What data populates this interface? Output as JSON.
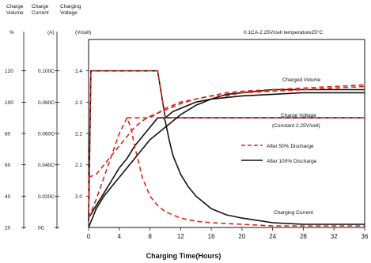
{
  "chart_data": {
    "type": "line",
    "headers": {
      "volume": [
        "Charge",
        "Volume"
      ],
      "current": [
        "Charge",
        "Current"
      ],
      "voltage": [
        "Charging",
        "Voltage"
      ]
    },
    "units": {
      "volume": "%",
      "current": "(A)",
      "voltage": "(V/cell)"
    },
    "condition": "0.1CA-2.25V/cell   temperature25°C",
    "xlabel": "Charging Time(Hours)",
    "xlim": [
      0,
      36
    ],
    "xticks": [
      "0",
      "4",
      "8",
      "12",
      "16",
      "20",
      "24",
      "28",
      "32",
      "36"
    ],
    "axes": {
      "volume": {
        "ylim": [
          20,
          140
        ],
        "ticks": [
          "20",
          "40",
          "60",
          "80",
          "100",
          "120"
        ]
      },
      "current": {
        "ylim": [
          0,
          0.12
        ],
        "ticks": [
          "0C",
          "0.020C",
          "0.040C",
          "0.060C",
          "0.080C",
          "0.100C"
        ]
      },
      "voltage": {
        "ylim": [
          1.9,
          2.5
        ],
        "ticks": [
          "2.0",
          "2.1",
          "2.2",
          "2.3",
          "2.4"
        ]
      }
    },
    "annotations": {
      "charged_volume": "Charged Volume",
      "charge_voltage": "Charge Voltage",
      "charge_voltage_2": "(Constant 2.25V/cell)",
      "charging_current": "Charging Current"
    },
    "legend": {
      "dashed": "After 50% Discharge",
      "solid": "After 100% Discharge"
    },
    "colors": {
      "dashed": "#d62818",
      "solid": "#111111"
    },
    "series": [
      {
        "name": "After 100% Discharge",
        "group": "voltage",
        "style": "solid",
        "axis": "voltage",
        "x": [
          0,
          0.3,
          0.6,
          1,
          2,
          3,
          4,
          5,
          6,
          7,
          8,
          9,
          10,
          36
        ],
        "y": [
          1.92,
          2.4,
          2.4,
          2.4,
          2.4,
          2.4,
          2.4,
          2.4,
          2.4,
          2.4,
          2.4,
          2.4,
          2.25,
          2.25
        ]
      },
      {
        "name": "After 50% Discharge",
        "group": "voltage",
        "style": "dashed",
        "axis": "voltage",
        "x": [
          0,
          0.3,
          0.6,
          1,
          2,
          3,
          4,
          5,
          6,
          7,
          8,
          9,
          10,
          36
        ],
        "y": [
          1.95,
          2.4,
          2.4,
          2.4,
          2.4,
          2.4,
          2.4,
          2.4,
          2.4,
          2.4,
          2.4,
          2.4,
          2.25,
          2.25
        ]
      },
      {
        "name": "After 100% Discharge",
        "group": "volume",
        "style": "solid",
        "axis": "volume",
        "x": [
          0,
          1,
          2,
          3,
          4,
          5,
          6,
          7,
          8,
          9,
          10,
          12,
          14,
          16,
          18,
          20,
          24,
          28,
          32,
          36
        ],
        "y": [
          20,
          32,
          40,
          46,
          52,
          58,
          64,
          70,
          76,
          80,
          84,
          92,
          98,
          102,
          105,
          106,
          108,
          108,
          108,
          108
        ]
      },
      {
        "name": "After 50% Discharge",
        "group": "volume",
        "style": "dashed",
        "axis": "volume",
        "x": [
          0,
          1,
          2,
          3,
          4,
          5,
          6,
          7,
          8,
          9,
          10,
          12,
          14,
          16,
          18,
          20,
          24,
          28,
          32,
          36
        ],
        "y": [
          52,
          54,
          60,
          66,
          72,
          78,
          84,
          88,
          91,
          93,
          95,
          99,
          102,
          104,
          106,
          107,
          108,
          109,
          110,
          111
        ]
      },
      {
        "name": "After 100% Discharge",
        "group": "current",
        "style": "solid",
        "axis": "voltage",
        "x": [
          0,
          1,
          2,
          3,
          4,
          5,
          6,
          7,
          8,
          9,
          9.8,
          10,
          10.5,
          11,
          12,
          13,
          14,
          16,
          18,
          20,
          24,
          28,
          32,
          36
        ],
        "y": [
          1.93,
          1.97,
          2.01,
          2.05,
          2.09,
          2.12,
          2.16,
          2.19,
          2.22,
          2.25,
          2.25,
          2.24,
          2.18,
          2.13,
          2.07,
          2.03,
          2.0,
          1.96,
          1.94,
          1.93,
          1.915,
          1.91,
          1.91,
          1.91
        ]
      },
      {
        "name": "After 50% Discharge",
        "group": "current",
        "style": "dashed",
        "axis": "voltage",
        "x": [
          0,
          1,
          2,
          3,
          4,
          5,
          5.5,
          6,
          7,
          8,
          9,
          10,
          12,
          14,
          16,
          20,
          24,
          28,
          32,
          36
        ],
        "y": [
          1.93,
          1.99,
          2.06,
          2.13,
          2.2,
          2.25,
          2.22,
          2.16,
          2.06,
          2.0,
          1.97,
          1.95,
          1.93,
          1.92,
          1.915,
          1.91,
          1.905,
          1.905,
          1.905,
          1.905
        ]
      },
      {
        "name": "After 100% Discharge",
        "group": "voltage-rise",
        "style": "solid",
        "axis": "voltage",
        "x": [
          10,
          11,
          12,
          14,
          16,
          18,
          20,
          24,
          28,
          32,
          36
        ],
        "y": [
          2.25,
          2.27,
          2.28,
          2.3,
          2.31,
          2.315,
          2.32,
          2.325,
          2.33,
          2.33,
          2.33
        ]
      },
      {
        "name": "After 50% Discharge",
        "group": "voltage-rise",
        "style": "dashed",
        "axis": "voltage",
        "x": [
          5,
          6,
          7,
          8,
          10,
          12,
          14,
          16,
          18,
          20,
          24,
          28,
          32,
          36
        ],
        "y": [
          2.25,
          2.25,
          2.25,
          2.25,
          2.28,
          2.3,
          2.31,
          2.32,
          2.32,
          2.33,
          2.335,
          2.34,
          2.345,
          2.35
        ]
      }
    ]
  }
}
